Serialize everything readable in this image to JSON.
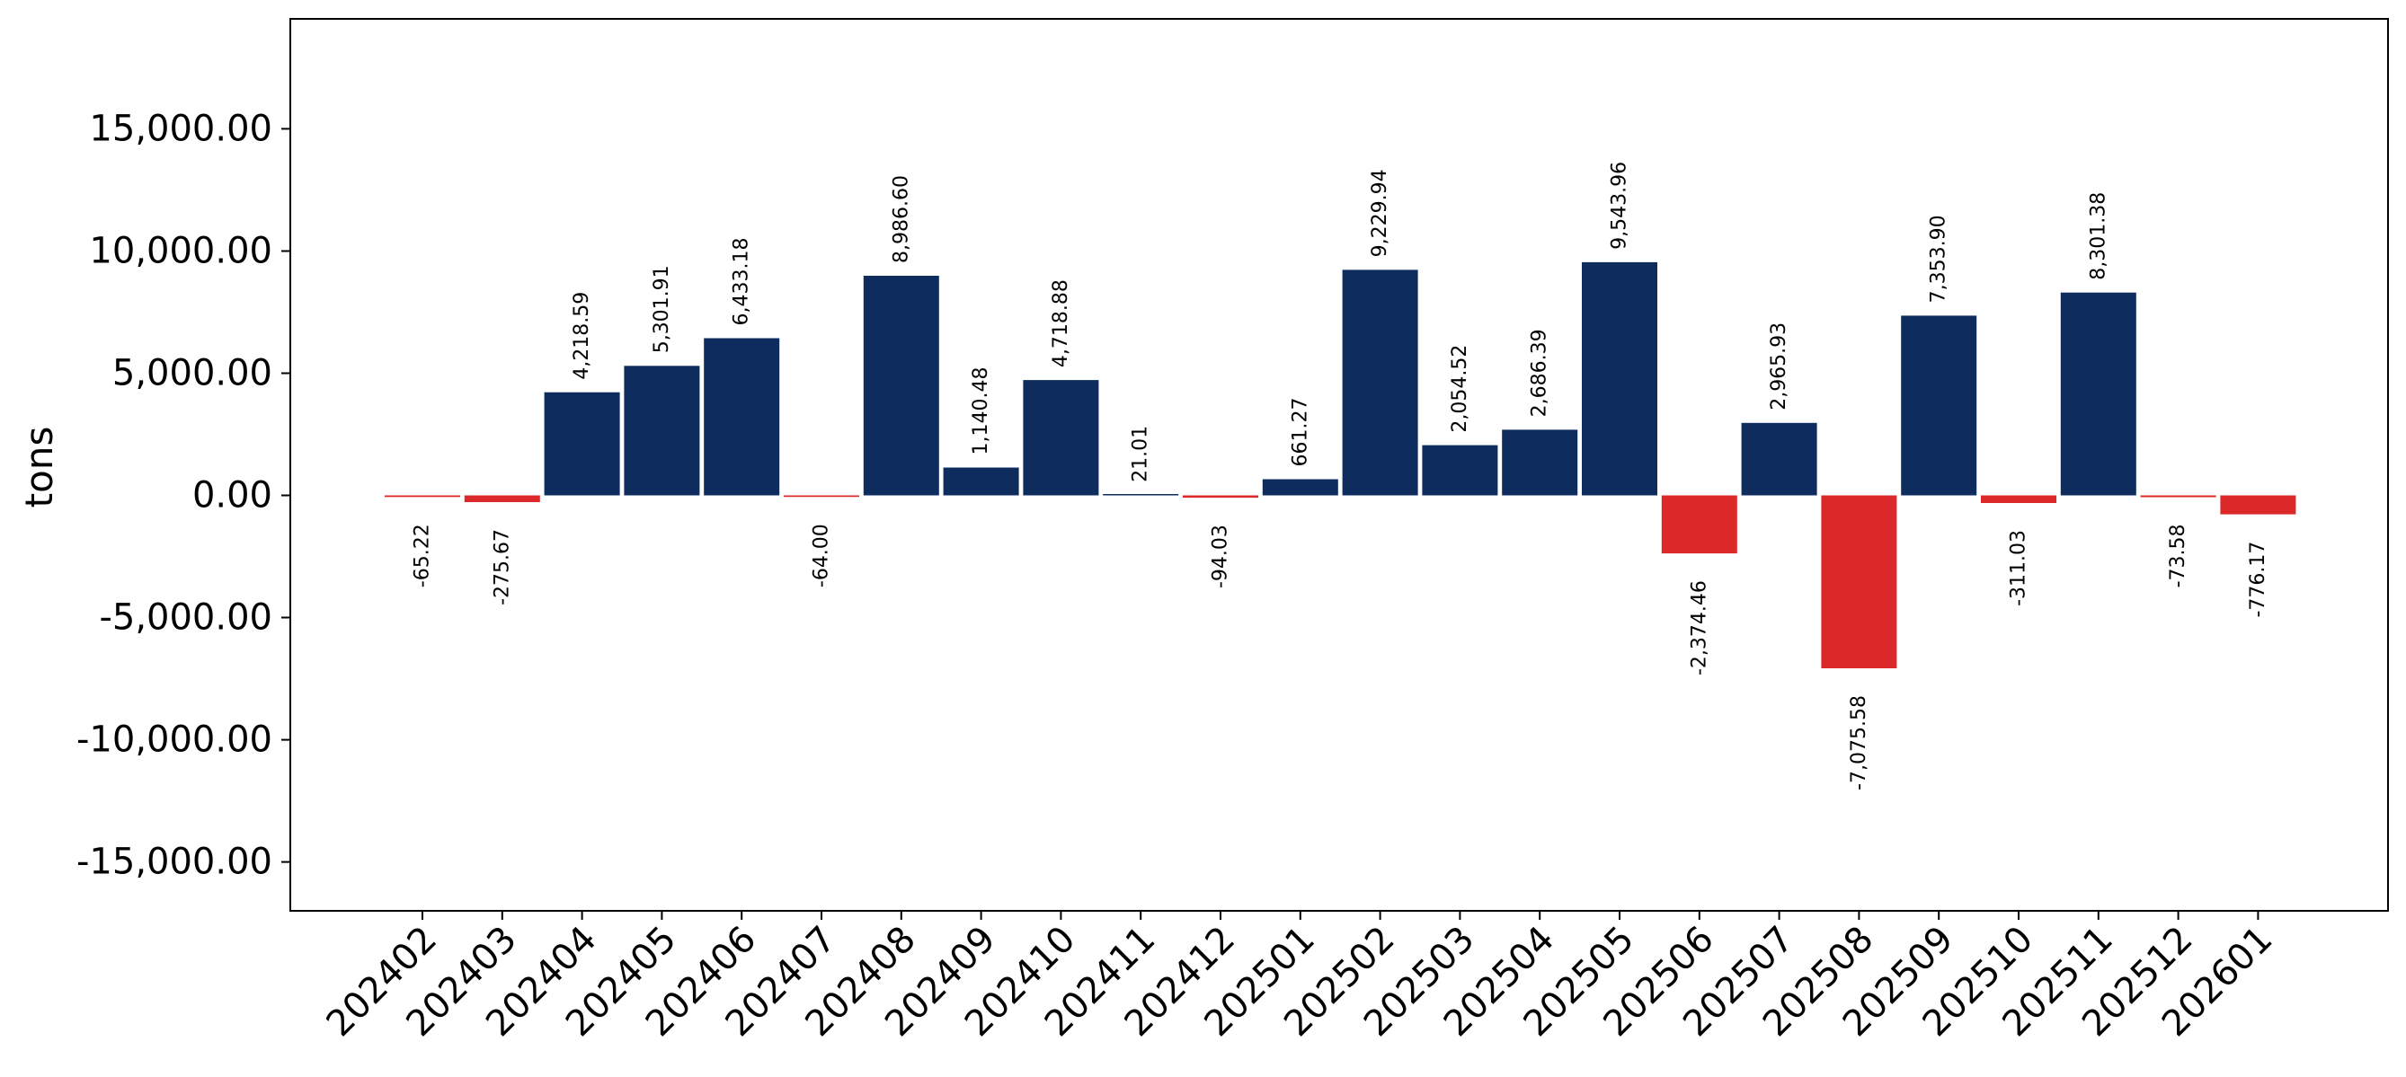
{
  "chart_data": {
    "type": "bar",
    "ylabel": "tons",
    "ylim": [
      -17000,
      19500
    ],
    "yticks": [
      -15000,
      -10000,
      -5000,
      0,
      5000,
      10000,
      15000
    ],
    "ytick_labels": [
      "-15,000.00",
      "-10,000.00",
      "-5,000.00",
      "0.00",
      "5,000.00",
      "10,000.00",
      "15,000.00"
    ],
    "grid": false,
    "categories": [
      "202402",
      "202403",
      "202404",
      "202405",
      "202406",
      "202407",
      "202408",
      "202409",
      "202410",
      "202411",
      "202412",
      "202501",
      "202502",
      "202503",
      "202504",
      "202505",
      "202506",
      "202507",
      "202508",
      "202509",
      "202510",
      "202511",
      "202512",
      "202601"
    ],
    "values": [
      -65.22,
      -275.67,
      4218.59,
      5301.91,
      6433.18,
      -64.0,
      8986.6,
      1140.48,
      4718.88,
      21.01,
      -94.03,
      661.27,
      9229.94,
      2054.52,
      2686.39,
      9543.96,
      -2374.46,
      2965.93,
      -7075.58,
      7353.9,
      -311.03,
      8301.38,
      -73.58,
      -776.17
    ],
    "data_labels": [
      "-65.22",
      "-275.67",
      "4,218.59",
      "5,301.91",
      "6,433.18",
      "-64.00",
      "8,986.60",
      "1,140.48",
      "4,718.88",
      "21.01",
      "-94.03",
      "661.27",
      "9,229.94",
      "2,054.52",
      "2,686.39",
      "9,543.96",
      "-2,374.46",
      "2,965.93",
      "-7,075.58",
      "7,353.90",
      "-311.03",
      "8,301.38",
      "-73.58",
      "-776.17"
    ],
    "colors": {
      "positive": "#0e2d5e",
      "negative": "#dc2828"
    }
  }
}
